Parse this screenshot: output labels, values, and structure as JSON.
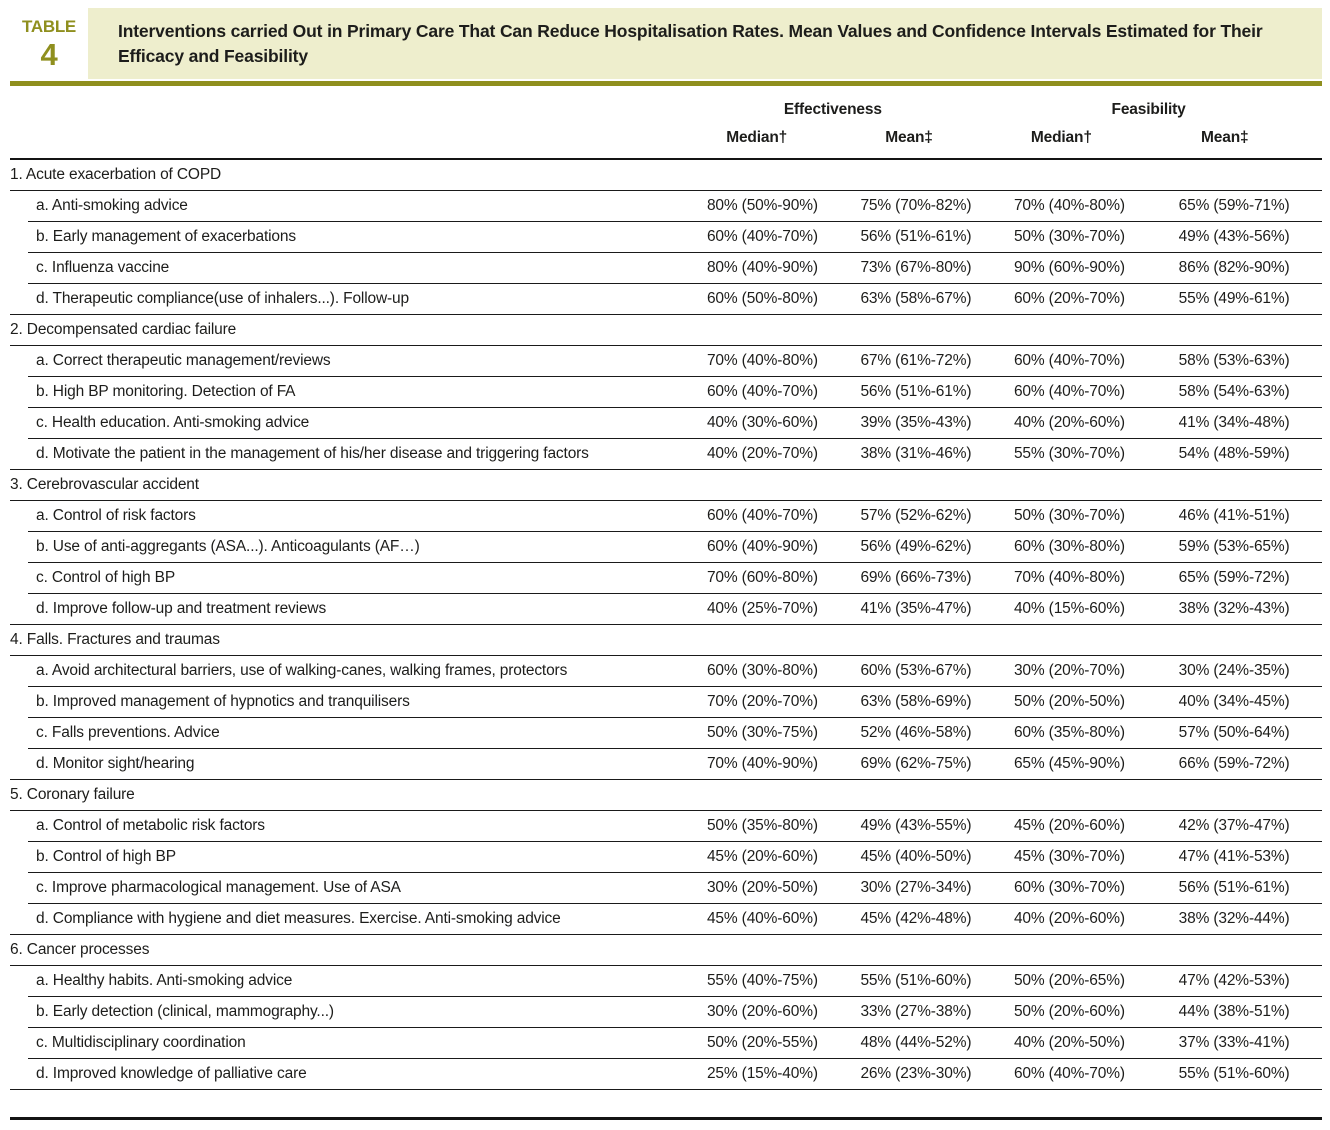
{
  "table_label": {
    "word": "TABLE",
    "number": "4"
  },
  "title": "Interventions carried Out in Primary Care That Can Reduce Hospitalisation Rates. Mean Values and Confidence Intervals Estimated for Their Efficacy and Feasibility",
  "colors": {
    "olive": "#8f8f1e",
    "title_bg": "#eeeecd",
    "text": "#1d1d1b"
  },
  "columns": {
    "groups": [
      "Effectiveness",
      "Feasibility"
    ],
    "sub": [
      "Median†",
      "Mean‡",
      "Median†",
      "Mean‡"
    ]
  },
  "sections": [
    {
      "label": "1. Acute exacerbation of COPD",
      "rows": [
        {
          "label": "a. Anti-smoking advice",
          "values": [
            "80% (50%-90%)",
            "75% (70%-82%)",
            "70% (40%-80%)",
            "65% (59%-71%)"
          ]
        },
        {
          "label": "b. Early management of exacerbations",
          "values": [
            "60% (40%-70%)",
            "56% (51%-61%)",
            "50% (30%-70%)",
            "49% (43%-56%)"
          ]
        },
        {
          "label": "c. Influenza vaccine",
          "values": [
            "80% (40%-90%)",
            "73% (67%-80%)",
            "90% (60%-90%)",
            "86% (82%-90%)"
          ]
        },
        {
          "label": "d. Therapeutic compliance(use of inhalers...). Follow-up",
          "values": [
            "60% (50%-80%)",
            "63% (58%-67%)",
            "60% (20%-70%)",
            "55% (49%-61%)"
          ]
        }
      ]
    },
    {
      "label": "2. Decompensated cardiac failure",
      "rows": [
        {
          "label": "a. Correct therapeutic management/reviews",
          "values": [
            "70% (40%-80%)",
            "67% (61%-72%)",
            "60% (40%-70%)",
            "58% (53%-63%)"
          ]
        },
        {
          "label": "b. High BP monitoring. Detection of FA",
          "values": [
            "60% (40%-70%)",
            "56% (51%-61%)",
            "60% (40%-70%)",
            "58% (54%-63%)"
          ]
        },
        {
          "label": "c. Health education. Anti-smoking advice",
          "values": [
            "40% (30%-60%)",
            "39% (35%-43%)",
            "40% (20%-60%)",
            "41% (34%-48%)"
          ]
        },
        {
          "label": "d. Motivate the patient in the management of his/her disease and triggering factors",
          "values": [
            "40% (20%-70%)",
            "38% (31%-46%)",
            "55% (30%-70%)",
            "54% (48%-59%)"
          ]
        }
      ]
    },
    {
      "label": "3. Cerebrovascular accident",
      "rows": [
        {
          "label": "a. Control of risk factors",
          "values": [
            "60% (40%-70%)",
            "57% (52%-62%)",
            "50% (30%-70%)",
            "46% (41%-51%)"
          ]
        },
        {
          "label": "b. Use of anti-aggregants (ASA...). Anticoagulants (AF…)",
          "values": [
            "60% (40%-90%)",
            "56% (49%-62%)",
            "60% (30%-80%)",
            "59% (53%-65%)"
          ]
        },
        {
          "label": "c. Control of high BP",
          "values": [
            "70% (60%-80%)",
            "69% (66%-73%)",
            "70% (40%-80%)",
            "65% (59%-72%)"
          ]
        },
        {
          "label": "d. Improve follow-up and treatment reviews",
          "values": [
            "40% (25%-70%)",
            "41% (35%-47%)",
            "40% (15%-60%)",
            "38% (32%-43%)"
          ]
        }
      ]
    },
    {
      "label": "4. Falls. Fractures and traumas",
      "rows": [
        {
          "label": "a. Avoid architectural barriers, use of walking-canes, walking frames, protectors",
          "values": [
            "60% (30%-80%)",
            "60% (53%-67%)",
            "30% (20%-70%)",
            "30% (24%-35%)"
          ]
        },
        {
          "label": "b. Improved management of hypnotics and tranquilisers",
          "values": [
            "70% (20%-70%)",
            "63% (58%-69%)",
            "50% (20%-50%)",
            "40% (34%-45%)"
          ]
        },
        {
          "label": "c. Falls preventions. Advice",
          "values": [
            "50% (30%-75%)",
            "52% (46%-58%)",
            "60% (35%-80%)",
            "57% (50%-64%)"
          ]
        },
        {
          "label": "d. Monitor sight/hearing",
          "values": [
            "70% (40%-90%)",
            "69% (62%-75%)",
            "65% (45%-90%)",
            "66% (59%-72%)"
          ]
        }
      ]
    },
    {
      "label": "5. Coronary failure",
      "rows": [
        {
          "label": "a. Control of metabolic risk factors",
          "values": [
            "50% (35%-80%)",
            "49% (43%-55%)",
            "45% (20%-60%)",
            "42% (37%-47%)"
          ]
        },
        {
          "label": "b. Control of high BP",
          "values": [
            "45% (20%-60%)",
            "45% (40%-50%)",
            "45% (30%-70%)",
            "47% (41%-53%)"
          ]
        },
        {
          "label": "c. Improve pharmacological management. Use of ASA",
          "values": [
            "30% (20%-50%)",
            "30% (27%-34%)",
            "60% (30%-70%)",
            "56% (51%-61%)"
          ]
        },
        {
          "label": "d. Compliance with hygiene and diet measures. Exercise. Anti-smoking advice",
          "values": [
            "45% (40%-60%)",
            "45% (42%-48%)",
            "40% (20%-60%)",
            "38% (32%-44%)"
          ]
        }
      ]
    },
    {
      "label": "6. Cancer processes",
      "rows": [
        {
          "label": "a. Healthy habits. Anti-smoking advice",
          "values": [
            "55% (40%-75%)",
            "55% (51%-60%)",
            "50% (20%-65%)",
            "47% (42%-53%)"
          ]
        },
        {
          "label": "b. Early detection (clinical, mammography...)",
          "values": [
            "30% (20%-60%)",
            "33% (27%-38%)",
            "50% (20%-60%)",
            "44% (38%-51%)"
          ]
        },
        {
          "label": "c. Multidisciplinary coordination",
          "values": [
            "50% (20%-55%)",
            "48% (44%-52%)",
            "40% (20%-50%)",
            "37% (33%-41%)"
          ]
        },
        {
          "label": "d. Improved knowledge of palliative care",
          "values": [
            "25% (15%-40%)",
            "26% (23%-30%)",
            "60% (40%-70%)",
            "55% (51%-60%)"
          ]
        }
      ]
    }
  ]
}
